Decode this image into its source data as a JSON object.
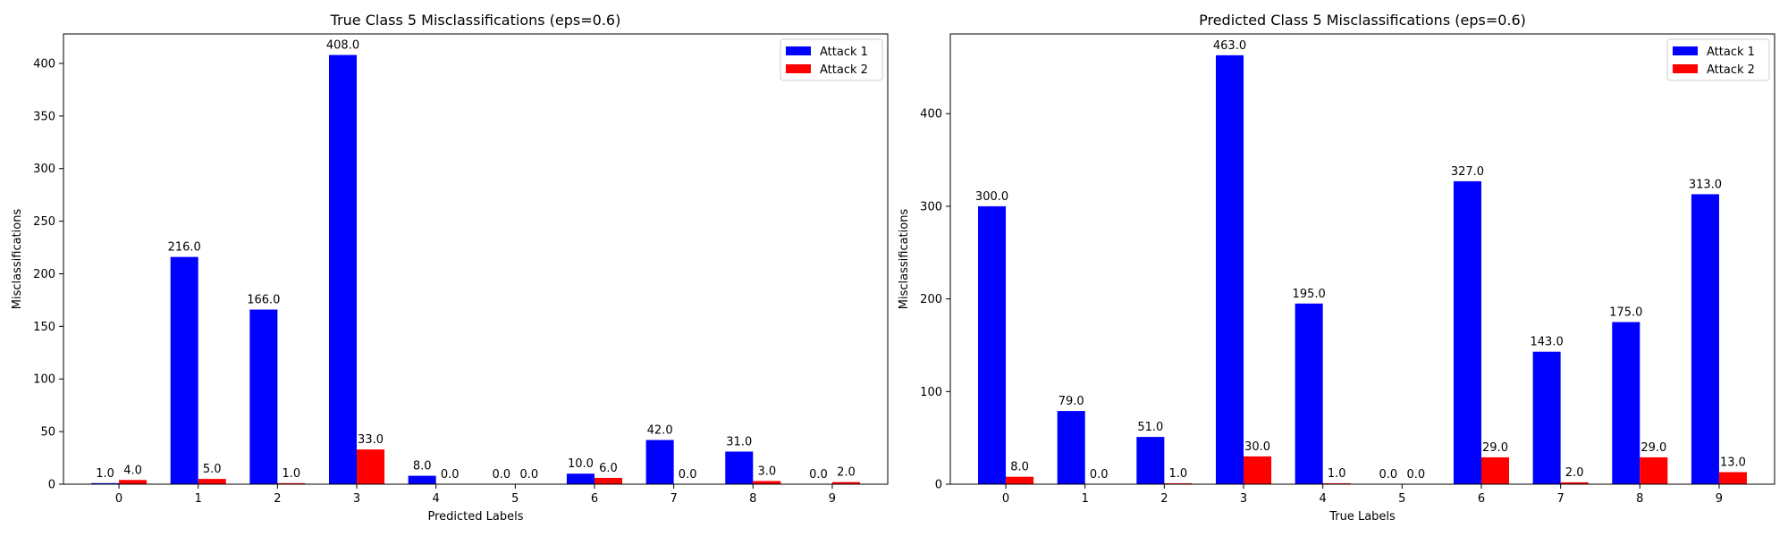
{
  "chart_data": [
    {
      "type": "bar",
      "title": "True Class 5 Misclassifications (eps=0.6)",
      "xlabel": "Predicted Labels",
      "ylabel": "Misclassifications",
      "categories": [
        "0",
        "1",
        "2",
        "3",
        "4",
        "5",
        "6",
        "7",
        "8",
        "9"
      ],
      "ylim": [
        0,
        428
      ],
      "yticks": [
        0,
        50,
        100,
        150,
        200,
        250,
        300,
        350,
        400
      ],
      "legend_position": "top-right",
      "grid": false,
      "series": [
        {
          "name": "Attack 1",
          "color": "#0000ff",
          "values": [
            1.0,
            216.0,
            166.0,
            408.0,
            8.0,
            0.0,
            10.0,
            42.0,
            31.0,
            0.0
          ]
        },
        {
          "name": "Attack 2",
          "color": "#ff0000",
          "values": [
            4.0,
            5.0,
            1.0,
            33.0,
            0.0,
            0.0,
            6.0,
            0.0,
            3.0,
            2.0
          ]
        }
      ]
    },
    {
      "type": "bar",
      "title": "Predicted Class 5 Misclassifications (eps=0.6)",
      "xlabel": "True Labels",
      "ylabel": "Misclassifications",
      "categories": [
        "0",
        "1",
        "2",
        "3",
        "4",
        "5",
        "6",
        "7",
        "8",
        "9"
      ],
      "ylim": [
        0,
        486
      ],
      "yticks": [
        0,
        100,
        200,
        300,
        400
      ],
      "legend_position": "top-right",
      "grid": false,
      "series": [
        {
          "name": "Attack 1",
          "color": "#0000ff",
          "values": [
            300.0,
            79.0,
            51.0,
            463.0,
            195.0,
            0.0,
            327.0,
            143.0,
            175.0,
            313.0
          ]
        },
        {
          "name": "Attack 2",
          "color": "#ff0000",
          "values": [
            8.0,
            0.0,
            1.0,
            30.0,
            1.0,
            0.0,
            29.0,
            2.0,
            29.0,
            13.0
          ]
        }
      ]
    }
  ]
}
